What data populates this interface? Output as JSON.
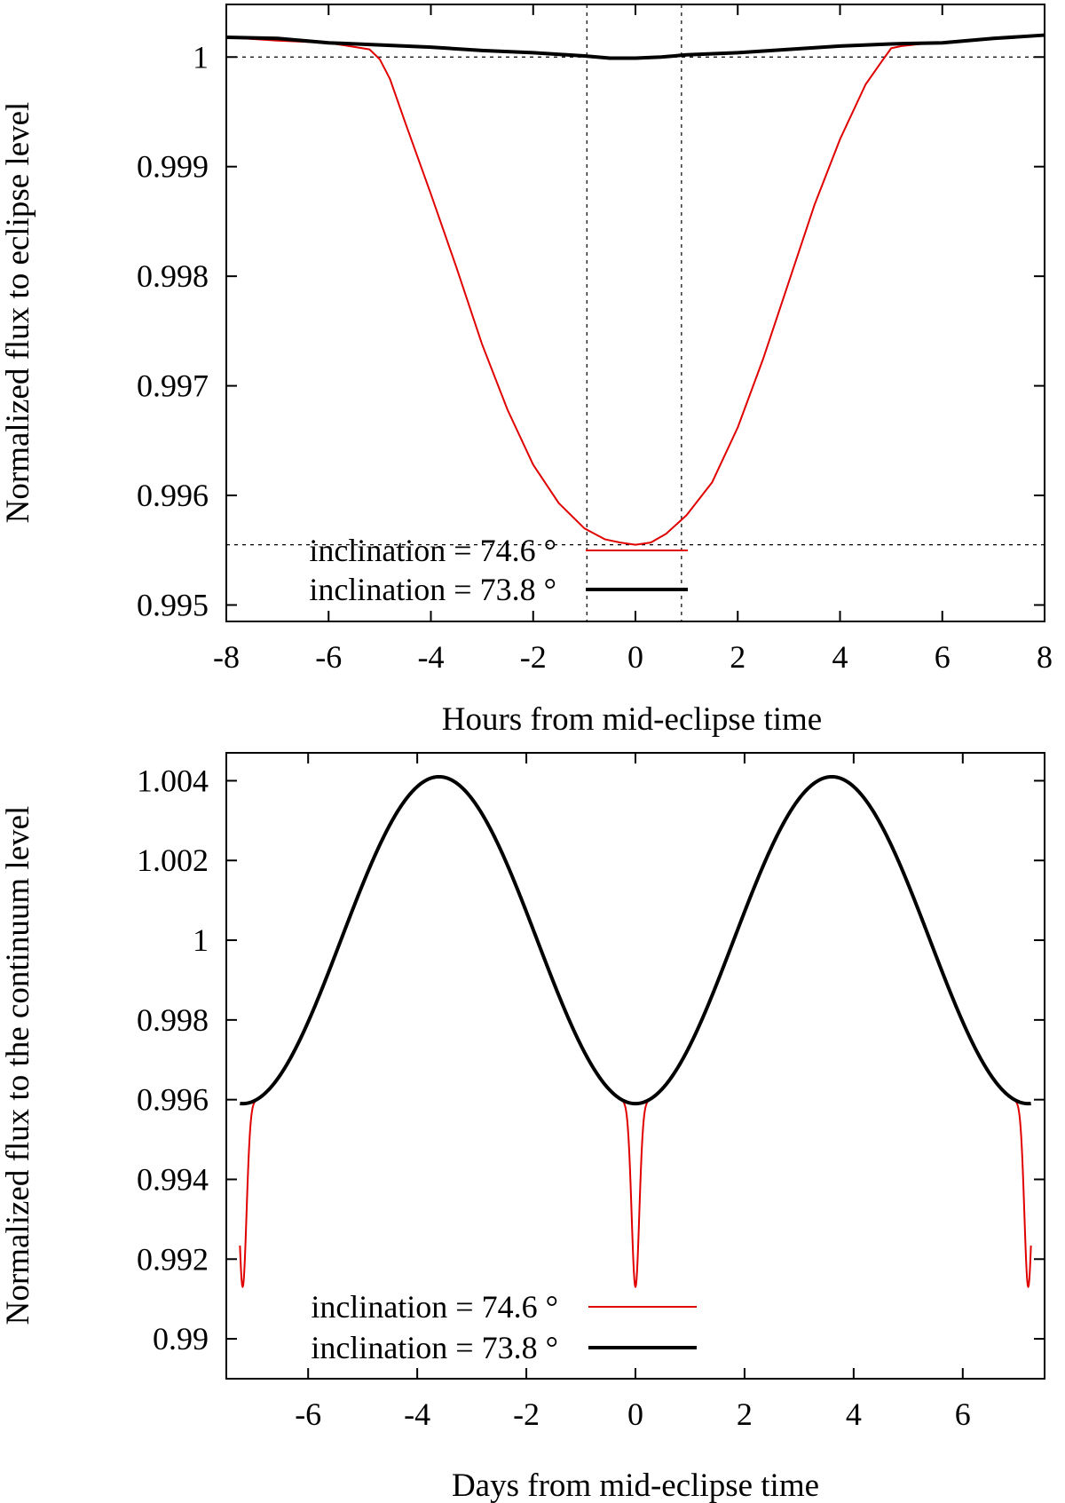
{
  "chart_data": [
    {
      "type": "line",
      "xlabel": "Hours from mid-eclipse time",
      "ylabel": "Normalized flux to eclipse level",
      "xlim": [
        -8,
        8
      ],
      "ylim": [
        0.99485,
        1.00048
      ],
      "xticks": [
        -8,
        -6,
        -4,
        -2,
        0,
        2,
        4,
        6,
        8
      ],
      "xtick_labels": [
        "-8",
        "-6",
        "-4",
        "-2",
        "0",
        "2",
        "4",
        "6",
        "8"
      ],
      "yticks": [
        0.995,
        0.996,
        0.997,
        0.998,
        0.999,
        1
      ],
      "ytick_labels": [
        "0.995",
        "0.996",
        "0.997",
        "0.998",
        "0.999",
        "1"
      ],
      "reference_lines": {
        "horizontal": [
          1.0,
          0.99555
        ],
        "vertical": [
          -0.95,
          0.9
        ]
      },
      "legend_position": "bottom-left",
      "series": [
        {
          "name": "inclination = 74.6 °",
          "color": "#e00000",
          "x": [
            -8,
            -7,
            -6,
            -5.6,
            -5.2,
            -5.0,
            -4.8,
            -4.5,
            -4.0,
            -3.5,
            -3.0,
            -2.5,
            -2.0,
            -1.5,
            -1.0,
            -0.6,
            -0.3,
            0,
            0.3,
            0.6,
            1.0,
            1.5,
            2.0,
            2.5,
            3.0,
            3.5,
            4.0,
            4.5,
            4.8,
            5.0,
            5.2,
            5.6,
            6,
            7,
            8
          ],
          "y": [
            1.00018,
            1.00015,
            1.00013,
            1.0001,
            1.00007,
            0.99998,
            0.9998,
            0.9994,
            0.99875,
            0.99808,
            0.99738,
            0.99678,
            0.99628,
            0.99593,
            0.9957,
            0.9956,
            0.99557,
            0.99555,
            0.99557,
            0.99565,
            0.99582,
            0.99612,
            0.99662,
            0.99725,
            0.99795,
            0.99865,
            0.99925,
            0.99975,
            0.99995,
            1.00008,
            1.0001,
            1.00012,
            1.00013,
            1.00017,
            1.0002
          ]
        },
        {
          "name": "inclination = 73.8 °",
          "color": "#000000",
          "x": [
            -8,
            -7,
            -6,
            -5,
            -4,
            -3,
            -2,
            -1,
            -0.5,
            0,
            0.5,
            1,
            2,
            3,
            4,
            5,
            6,
            7,
            8
          ],
          "y": [
            1.00018,
            1.00017,
            1.00013,
            1.00011,
            1.00009,
            1.00006,
            1.00004,
            1.00001,
            0.99999,
            0.99999,
            1.0,
            1.00002,
            1.00004,
            1.00007,
            1.0001,
            1.00012,
            1.00013,
            1.00017,
            1.0002
          ]
        }
      ]
    },
    {
      "type": "line",
      "xlabel": "Days from mid-eclipse time",
      "ylabel": "Normalized flux to the continuum level",
      "xlim": [
        -7.5,
        7.5
      ],
      "ylim": [
        0.989,
        1.0047
      ],
      "xticks": [
        -6,
        -4,
        -2,
        0,
        2,
        4,
        6
      ],
      "xtick_labels": [
        "-6",
        "-4",
        "-2",
        "0",
        "2",
        "4",
        "6"
      ],
      "yticks": [
        0.99,
        0.992,
        0.994,
        0.996,
        0.998,
        1,
        1.002,
        1.004
      ],
      "ytick_labels": [
        "0.99",
        "0.992",
        "0.994",
        "0.996",
        "0.998",
        "1",
        "1.002",
        "1.004"
      ],
      "legend_position": "bottom-left",
      "model": {
        "period_days": 7.2,
        "mean_flux": 1.0,
        "amplitude": 0.0041,
        "eclipse_depth_inclination_74_6": 0.0046,
        "eclipse_half_width_days": 0.3,
        "x_range": [
          -7.25,
          7.25
        ]
      },
      "series": [
        {
          "name": "inclination = 74.6 °",
          "color": "#e00000",
          "eclipse": true
        },
        {
          "name": "inclination = 73.8 °",
          "color": "#000000",
          "eclipse": false
        }
      ]
    }
  ]
}
